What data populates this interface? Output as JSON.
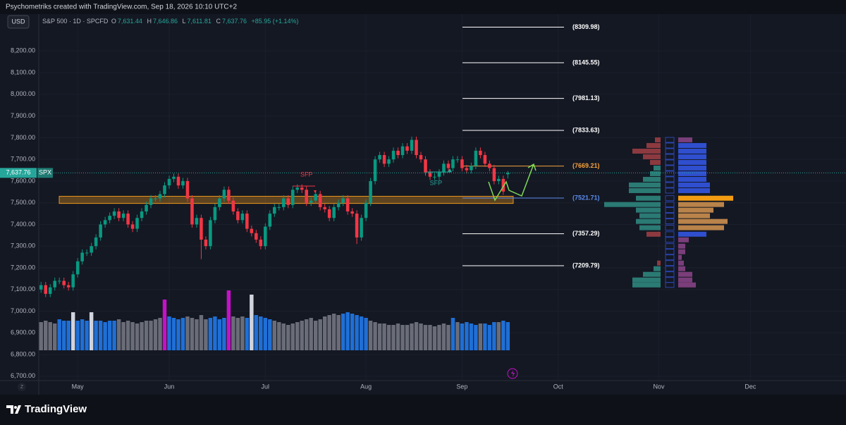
{
  "watermark": "Psychometriks created with TradingView.com, Sep 18, 2026 10:10 UTC+2",
  "currency": "USD",
  "header": {
    "symbol": "S&P 500 · 1D · SPCFD",
    "ohlc": [
      {
        "key": "O",
        "value": "7,631.44"
      },
      {
        "key": "H",
        "value": "7,646.86"
      },
      {
        "key": "L",
        "value": "7,611.81"
      },
      {
        "key": "C",
        "value": "7,637.76"
      }
    ],
    "change": "+85.95 (+1.14%)"
  },
  "price_tag": {
    "price": "7,637.76",
    "symbol": "SPX"
  },
  "time_zone_button": "Z",
  "logo": "TradingView",
  "chart_data": {
    "type": "candlestick",
    "up_color": "#089981",
    "down_color": "#f23645",
    "open": [
      7100,
      7120,
      7080,
      7110,
      7140,
      7140,
      7120,
      7110,
      7170,
      7230,
      7270,
      7270,
      7300,
      7340,
      7400,
      7420,
      7440,
      7460,
      7430,
      7450,
      7400,
      7380,
      7430,
      7460,
      7490,
      7520,
      7520,
      7540,
      7580,
      7610,
      7620,
      7580,
      7600,
      7520,
      7400,
      7430,
      7330,
      7300,
      7420,
      7480,
      7520,
      7560,
      7510,
      7460,
      7420,
      7450,
      7380,
      7360,
      7330,
      7300,
      7390,
      7450,
      7480,
      7480,
      7520,
      7490,
      7560,
      7570,
      7560,
      7500,
      7510,
      7540,
      7480,
      7470,
      7430,
      7480,
      7500,
      7520,
      7460,
      7450,
      7340,
      7430,
      7500,
      7600,
      7700,
      7720,
      7680,
      7700,
      7740,
      7720,
      7760,
      7740,
      7790,
      7720,
      7700,
      7640,
      7620,
      7620,
      7640,
      7680,
      7660,
      7700,
      7700,
      7660,
      7650,
      7670,
      7740,
      7720,
      7680,
      7660,
      7600,
      7610,
      7631.44
    ],
    "high": [
      7135,
      7135,
      7125,
      7155,
      7155,
      7155,
      7135,
      7185,
      7245,
      7285,
      7285,
      7315,
      7355,
      7415,
      7435,
      7455,
      7475,
      7475,
      7465,
      7465,
      7415,
      7445,
      7475,
      7505,
      7535,
      7535,
      7555,
      7595,
      7625,
      7635,
      7635,
      7615,
      7615,
      7535,
      7445,
      7445,
      7345,
      7435,
      7495,
      7535,
      7575,
      7575,
      7525,
      7475,
      7465,
      7465,
      7395,
      7375,
      7345,
      7405,
      7465,
      7495,
      7495,
      7535,
      7535,
      7575,
      7585,
      7585,
      7575,
      7525,
      7555,
      7555,
      7495,
      7485,
      7495,
      7515,
      7535,
      7535,
      7475,
      7465,
      7445,
      7515,
      7615,
      7715,
      7735,
      7735,
      7715,
      7755,
      7755,
      7775,
      7775,
      7805,
      7805,
      7735,
      7715,
      7655,
      7635,
      7655,
      7695,
      7695,
      7715,
      7715,
      7715,
      7675,
      7685,
      7755,
      7755,
      7735,
      7695,
      7675,
      7625,
      7625,
      7646.86
    ],
    "low": [
      7085,
      7065,
      7065,
      7095,
      7125,
      7105,
      7095,
      7095,
      7155,
      7215,
      7255,
      7255,
      7285,
      7325,
      7385,
      7405,
      7425,
      7415,
      7415,
      7385,
      7365,
      7365,
      7415,
      7445,
      7475,
      7505,
      7505,
      7525,
      7565,
      7595,
      7565,
      7565,
      7505,
      7385,
      7385,
      7240,
      7285,
      7285,
      7405,
      7465,
      7505,
      7495,
      7445,
      7405,
      7405,
      7365,
      7345,
      7315,
      7285,
      7285,
      7375,
      7435,
      7465,
      7465,
      7475,
      7475,
      7545,
      7545,
      7485,
      7485,
      7495,
      7465,
      7455,
      7415,
      7415,
      7465,
      7485,
      7445,
      7435,
      7310,
      7325,
      7415,
      7485,
      7585,
      7685,
      7665,
      7665,
      7685,
      7705,
      7705,
      7725,
      7725,
      7705,
      7685,
      7625,
      7605,
      7605,
      7605,
      7625,
      7645,
      7645,
      7685,
      7645,
      7635,
      7635,
      7655,
      7705,
      7665,
      7645,
      7585,
      7585,
      7537,
      7611.81
    ],
    "close": [
      7120,
      7080,
      7110,
      7140,
      7140,
      7120,
      7110,
      7170,
      7230,
      7270,
      7270,
      7300,
      7340,
      7400,
      7420,
      7440,
      7460,
      7430,
      7450,
      7400,
      7380,
      7430,
      7460,
      7490,
      7520,
      7520,
      7540,
      7580,
      7610,
      7620,
      7580,
      7600,
      7520,
      7400,
      7430,
      7330,
      7300,
      7420,
      7480,
      7520,
      7560,
      7510,
      7460,
      7420,
      7450,
      7380,
      7360,
      7330,
      7300,
      7390,
      7450,
      7480,
      7480,
      7520,
      7490,
      7560,
      7570,
      7560,
      7500,
      7510,
      7540,
      7480,
      7470,
      7430,
      7480,
      7500,
      7520,
      7460,
      7450,
      7340,
      7430,
      7500,
      7600,
      7700,
      7720,
      7680,
      7700,
      7740,
      7720,
      7760,
      7740,
      7790,
      7720,
      7700,
      7640,
      7620,
      7620,
      7640,
      7680,
      7660,
      7700,
      7700,
      7660,
      7650,
      7670,
      7740,
      7720,
      7680,
      7660,
      7600,
      7610,
      7551.81,
      7637.76
    ],
    "ylim": [
      6680,
      8370
    ],
    "yticks": [
      {
        "value": 6700,
        "label": "6,700.00"
      },
      {
        "value": 6800,
        "label": "6,800.00"
      },
      {
        "value": 6900,
        "label": "6,900.00"
      },
      {
        "value": 7000,
        "label": "7,000.00"
      },
      {
        "value": 7100,
        "label": "7,100.00"
      },
      {
        "value": 7200,
        "label": "7,200.00"
      },
      {
        "value": 7300,
        "label": "7,300.00"
      },
      {
        "value": 7400,
        "label": "7,400.00"
      },
      {
        "value": 7500,
        "label": "7,500.00"
      },
      {
        "value": 7600,
        "label": "7,600.00"
      },
      {
        "value": 7700,
        "label": "7,700.00"
      },
      {
        "value": 7800,
        "label": "7,800.00"
      },
      {
        "value": 7900,
        "label": "7,900.00"
      },
      {
        "value": 8000,
        "label": "8,000.00"
      },
      {
        "value": 8100,
        "label": "8,100.00"
      },
      {
        "value": 8200,
        "label": "8,200.00"
      }
    ],
    "xlim": [
      -0.5,
      170.5
    ],
    "xticks": [
      {
        "value": 8,
        "label": "May"
      },
      {
        "value": 28,
        "label": "Jun"
      },
      {
        "value": 49,
        "label": "Jul"
      },
      {
        "value": 71,
        "label": "Aug"
      },
      {
        "value": 92,
        "label": "Sep"
      },
      {
        "value": 113,
        "label": "Oct"
      },
      {
        "value": 135,
        "label": "Nov"
      },
      {
        "value": 155,
        "label": "Dec"
      }
    ],
    "grid": true,
    "volume": {
      "values": [
        40,
        42,
        40,
        38,
        44,
        42,
        42,
        54,
        42,
        44,
        42,
        54,
        42,
        42,
        40,
        42,
        42,
        44,
        40,
        42,
        40,
        38,
        40,
        42,
        42,
        44,
        46,
        72,
        48,
        46,
        44,
        46,
        48,
        46,
        44,
        50,
        44,
        46,
        48,
        44,
        46,
        85,
        48,
        46,
        48,
        46,
        79,
        50,
        48,
        46,
        44,
        42,
        40,
        38,
        36,
        38,
        40,
        42,
        44,
        46,
        42,
        44,
        48,
        50,
        52,
        50,
        52,
        54,
        52,
        50,
        48,
        46,
        42,
        40,
        38,
        38,
        36,
        36,
        38,
        36,
        36,
        38,
        40,
        38,
        36,
        36,
        34,
        36,
        38,
        36,
        46,
        40,
        38,
        40,
        38,
        36,
        38,
        38,
        36,
        40,
        40,
        42,
        40
      ],
      "colors": [
        "#6a6d78",
        "#6a6d78",
        "#6a6d78",
        "#6a6d78",
        "#1f6fd6",
        "#1f6fd6",
        "#1f6fd6",
        "#d1d4dc",
        "#1f6fd6",
        "#1f6fd6",
        "#1f6fd6",
        "#d1d4dc",
        "#1f6fd6",
        "#1f6fd6",
        "#1f6fd6",
        "#1f6fd6",
        "#1f6fd6",
        "#6a6d78",
        "#6a6d78",
        "#6a6d78",
        "#6a6d78",
        "#6a6d78",
        "#6a6d78",
        "#6a6d78",
        "#6a6d78",
        "#6a6d78",
        "#6a6d78",
        "#c511c8",
        "#1f6fd6",
        "#1f6fd6",
        "#1f6fd6",
        "#1f6fd6",
        "#6a6d78",
        "#6a6d78",
        "#6a6d78",
        "#6a6d78",
        "#6a6d78",
        "#1f6fd6",
        "#1f6fd6",
        "#1f6fd6",
        "#1f6fd6",
        "#c511c8",
        "#6a6d78",
        "#6a6d78",
        "#6a6d78",
        "#1f6fd6",
        "#d1d4dc",
        "#1f6fd6",
        "#1f6fd6",
        "#1f6fd6",
        "#1f6fd6",
        "#6a6d78",
        "#6a6d78",
        "#6a6d78",
        "#6a6d78",
        "#6a6d78",
        "#6a6d78",
        "#6a6d78",
        "#6a6d78",
        "#6a6d78",
        "#6a6d78",
        "#6a6d78",
        "#6a6d78",
        "#6a6d78",
        "#6a6d78",
        "#6a6d78",
        "#1f6fd6",
        "#1f6fd6",
        "#1f6fd6",
        "#1f6fd6",
        "#1f6fd6",
        "#1f6fd6",
        "#6a6d78",
        "#6a6d78",
        "#6a6d78",
        "#6a6d78",
        "#6a6d78",
        "#6a6d78",
        "#6a6d78",
        "#6a6d78",
        "#6a6d78",
        "#6a6d78",
        "#6a6d78",
        "#6a6d78",
        "#6a6d78",
        "#6a6d78",
        "#6a6d78",
        "#6a6d78",
        "#6a6d78",
        "#6a6d78",
        "#1f6fd6",
        "#6a6d78",
        "#1f6fd6",
        "#1f6fd6",
        "#1f6fd6",
        "#1f6fd6",
        "#6a6d78",
        "#1f6fd6",
        "#1f6fd6",
        "#1f6fd6",
        "#6a6d78",
        "#1f6fd6",
        "#1f6fd6"
      ]
    },
    "levels": [
      {
        "value": 8309.98,
        "label": "(8309.98)",
        "color": "#ffffff"
      },
      {
        "value": 8145.55,
        "label": "(8145.55)",
        "color": "#ffffff"
      },
      {
        "value": 7981.13,
        "label": "(7981.13)",
        "color": "#ffffff"
      },
      {
        "value": 7833.63,
        "label": "(7833.63)",
        "color": "#ffffff"
      },
      {
        "value": 7669.21,
        "label": "(7669.21)",
        "color": "#f7a23b"
      },
      {
        "value": 7521.71,
        "label": "(7521.71)",
        "color": "#5b8def"
      },
      {
        "value": 7357.29,
        "label": "(7357.29)",
        "color": "#ffffff"
      },
      {
        "value": 7209.79,
        "label": "(7209.79)",
        "color": "#ffffff"
      }
    ],
    "zone": {
      "low": 7497,
      "high": 7530,
      "color": "#e8961e"
    },
    "annotations": [
      {
        "text": "SFP",
        "x": 58,
        "y": 7629,
        "color": "#f23645"
      },
      {
        "text": "SFP",
        "x": 86.3,
        "y": 7590,
        "color": "#26a69a"
      }
    ],
    "profile": {
      "prices": [
        7790,
        7764,
        7738,
        7712,
        7686,
        7660,
        7634,
        7608,
        7582,
        7556,
        7521,
        7492,
        7466,
        7440,
        7414,
        7385,
        7355,
        7329,
        7300,
        7274,
        7248,
        7222,
        7196,
        7170,
        7144,
        7121
      ],
      "left": [
        8,
        20,
        40,
        25,
        15,
        10,
        15,
        25,
        45,
        45,
        35,
        80,
        35,
        30,
        35,
        30,
        20,
        0,
        0,
        0,
        0,
        5,
        10,
        25,
        40,
        40
      ],
      "right": [
        20,
        40,
        40,
        40,
        40,
        40,
        40,
        40,
        45,
        45,
        78,
        65,
        50,
        45,
        70,
        65,
        40,
        15,
        10,
        10,
        5,
        8,
        10,
        20,
        20,
        25
      ],
      "left_colors": [
        "#8c3a40",
        "#8c3a40",
        "#8c3a40",
        "#8c3a40",
        "#8c3a40",
        "#2b7a74",
        "#2b7a74",
        "#2b7a74",
        "#2b7a74",
        "#2b7a74",
        "#2b7a74",
        "#2b7a74",
        "#2b7a74",
        "#2b7a74",
        "#2b7a74",
        "#2b7a74",
        "#8c3a40",
        "#2b7a74",
        "#2b7a74",
        "#2b7a74",
        "#2b7a74",
        "#8c3a40",
        "#2b7a74",
        "#2b7a74",
        "#2b7a74",
        "#2b7a74"
      ],
      "right_colors": [
        "#7a3e7a",
        "#2f4fcf",
        "#2f4fcf",
        "#2f4fcf",
        "#2f4fcf",
        "#2f4fcf",
        "#2f4fcf",
        "#2f4fcf",
        "#2f4fcf",
        "#2f4fcf",
        "#f39c12",
        "#b9834a",
        "#b9834a",
        "#b9834a",
        "#b9834a",
        "#b9834a",
        "#2f4fcf",
        "#7a3e7a",
        "#7a3e7a",
        "#7a3e7a",
        "#7a3e7a",
        "#7a3e7a",
        "#7a3e7a",
        "#7a3e7a",
        "#7a3e7a",
        "#7a3e7a"
      ]
    }
  }
}
